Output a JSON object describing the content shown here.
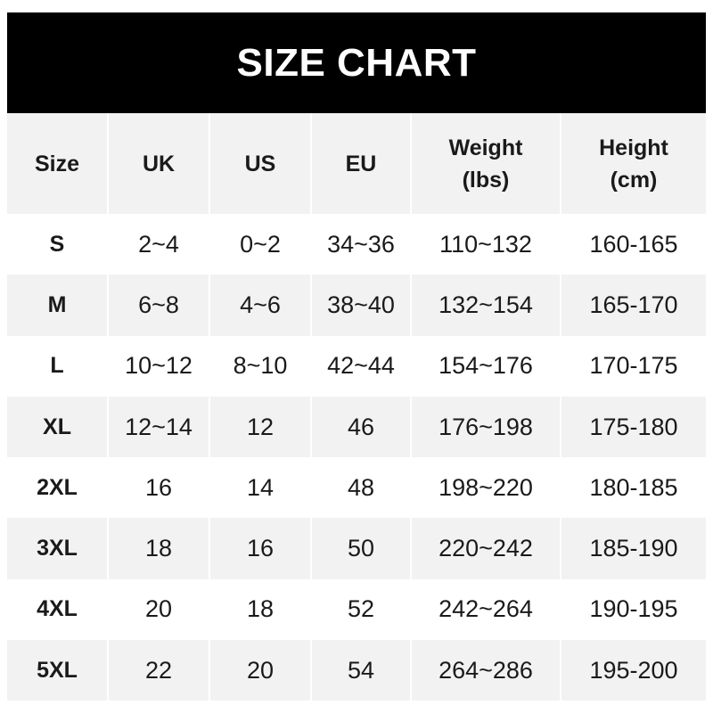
{
  "title": "SIZE CHART",
  "headers": [
    "Size",
    "UK",
    "US",
    "EU",
    "Weight\n(lbs)",
    "Height\n(cm)"
  ],
  "header_lines": [
    [
      "Size"
    ],
    [
      "UK"
    ],
    [
      "US"
    ],
    [
      "EU"
    ],
    [
      "Weight",
      "(lbs)"
    ],
    [
      "Height",
      "(cm)"
    ]
  ],
  "rows": [
    [
      "S",
      "2~4",
      "0~2",
      "34~36",
      "110~132",
      "160-165"
    ],
    [
      "M",
      "6~8",
      "4~6",
      "38~40",
      "132~154",
      "165-170"
    ],
    [
      "L",
      "10~12",
      "8~10",
      "42~44",
      "154~176",
      "170-175"
    ],
    [
      "XL",
      "12~14",
      "12",
      "46",
      "176~198",
      "175-180"
    ],
    [
      "2XL",
      "16",
      "14",
      "48",
      "198~220",
      "180-185"
    ],
    [
      "3XL",
      "18",
      "16",
      "50",
      "220~242",
      "185-190"
    ],
    [
      "4XL",
      "20",
      "18",
      "52",
      "242~264",
      "190-195"
    ],
    [
      "5XL",
      "22",
      "20",
      "54",
      "264~286",
      "195-200"
    ]
  ],
  "colors": {
    "banner": "#000000",
    "row_alt": "#f2f2f2",
    "text": "#1a1a1a"
  }
}
